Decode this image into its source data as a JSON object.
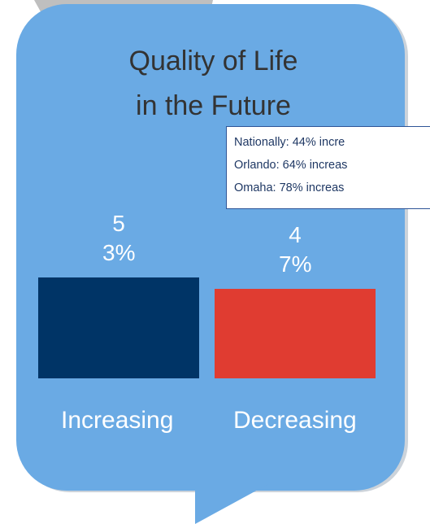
{
  "chart_data": {
    "type": "bar",
    "title_lines": [
      "Quality of Life",
      "in the Future"
    ],
    "categories": [
      "Increasing",
      "Decreasing"
    ],
    "series": [
      {
        "colors": [
          "#003466",
          "#e03c31"
        ],
        "values": [
          53,
          47
        ],
        "value_labels": [
          "53%",
          "47%"
        ]
      }
    ],
    "annotations": [
      "Nationally:  44% incre",
      "Orlando: 64% increas",
      "Omaha:  78% increas"
    ]
  }
}
